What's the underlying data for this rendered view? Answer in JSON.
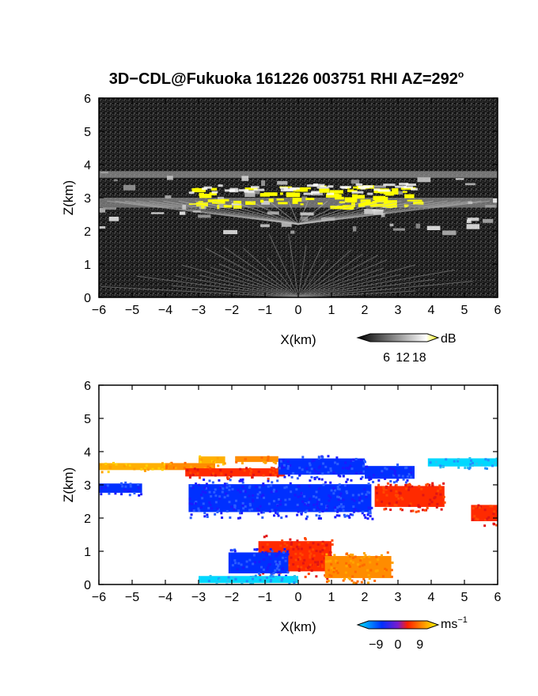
{
  "figure": {
    "title_main": "3D−CDL@Fukuoka 161226 003751 RHI AZ=292",
    "title_sup": "o"
  },
  "chart_data": [
    {
      "type": "heatmap",
      "name": "backscatter",
      "xlabel": "X(km)",
      "ylabel": "Z(km)",
      "xlim": [
        -6,
        6
      ],
      "ylim": [
        0,
        6
      ],
      "xticks": [
        -6,
        -5,
        -4,
        -3,
        -2,
        -1,
        0,
        1,
        2,
        3,
        4,
        5,
        6
      ],
      "yticks": [
        0,
        1,
        2,
        3,
        4,
        5,
        6
      ],
      "colorbar": {
        "unit": "dB",
        "ticks": [
          6,
          12,
          18
        ],
        "range": [
          0,
          21
        ],
        "colors": [
          "#000000",
          "#ffffff",
          "#ffff00"
        ]
      },
      "features": [
        {
          "feature": "cloud_base_echo",
          "x_range": [
            -6,
            6
          ],
          "z_range": [
            2.0,
            3.8
          ]
        },
        {
          "feature": "strong_echo_layer",
          "x_range": [
            -3.3,
            3.5
          ],
          "z_range": [
            2.8,
            3.9
          ],
          "level_dB": 18
        },
        {
          "feature": "near_ground_rays",
          "x_range": [
            -4,
            4
          ],
          "z_range": [
            0,
            1.6
          ]
        }
      ]
    },
    {
      "type": "heatmap",
      "name": "doppler_velocity",
      "xlabel": "X(km)",
      "ylabel": "Z(km)",
      "xlim": [
        -6,
        6
      ],
      "ylim": [
        0,
        6
      ],
      "xticks": [
        -6,
        -5,
        -4,
        -3,
        -2,
        -1,
        0,
        1,
        2,
        3,
        4,
        5,
        6
      ],
      "yticks": [
        0,
        1,
        2,
        3,
        4,
        5,
        6
      ],
      "colorbar": {
        "unit": "ms",
        "unit_sup": "−1",
        "ticks": [
          "−9",
          "0",
          "9"
        ],
        "range": [
          -12,
          12
        ],
        "colors": [
          "#00e5ff",
          "#0030ff",
          "#ff2000",
          "#ff8c00",
          "#ffff00"
        ]
      },
      "regions": [
        {
          "x_range": [
            -6,
            -4.0
          ],
          "z_range": [
            3.4,
            3.7
          ],
          "value": 8
        },
        {
          "x_range": [
            -4.0,
            -2.5
          ],
          "z_range": [
            3.4,
            3.7
          ],
          "value": 7
        },
        {
          "x_range": [
            -3.0,
            -2.2
          ],
          "z_range": [
            3.6,
            3.9
          ],
          "value": 8
        },
        {
          "x_range": [
            -3.4,
            -0.4
          ],
          "z_range": [
            3.2,
            3.55
          ],
          "value": 4
        },
        {
          "x_range": [
            -1.9,
            -0.6
          ],
          "z_range": [
            3.65,
            3.9
          ],
          "value": 6
        },
        {
          "x_range": [
            -0.6,
            2.0
          ],
          "z_range": [
            3.2,
            3.9
          ],
          "value": -3
        },
        {
          "x_range": [
            2.0,
            3.5
          ],
          "z_range": [
            3.1,
            3.65
          ],
          "value": -2
        },
        {
          "x_range": [
            -6,
            -4.7
          ],
          "z_range": [
            2.7,
            3.1
          ],
          "value": -3
        },
        {
          "x_range": [
            -3.3,
            2.2
          ],
          "z_range": [
            2.0,
            3.2
          ],
          "value": -3
        },
        {
          "x_range": [
            2.3,
            4.4
          ],
          "z_range": [
            2.2,
            3.1
          ],
          "value": 4
        },
        {
          "x_range": [
            3.9,
            6.0
          ],
          "z_range": [
            3.5,
            3.85
          ],
          "value": -10
        },
        {
          "x_range": [
            5.2,
            6.0
          ],
          "z_range": [
            1.8,
            2.5
          ],
          "value": 4
        },
        {
          "x_range": [
            -1.2,
            1.0
          ],
          "z_range": [
            0.2,
            1.5
          ],
          "value": 4
        },
        {
          "x_range": [
            0.8,
            2.8
          ],
          "z_range": [
            0.05,
            1.0
          ],
          "value": 6
        },
        {
          "x_range": [
            -2.1,
            -0.3
          ],
          "z_range": [
            0.2,
            1.1
          ],
          "value": -3
        },
        {
          "x_range": [
            -3.0,
            0.0
          ],
          "z_range": [
            0.0,
            0.3
          ],
          "value": -10
        }
      ]
    }
  ]
}
